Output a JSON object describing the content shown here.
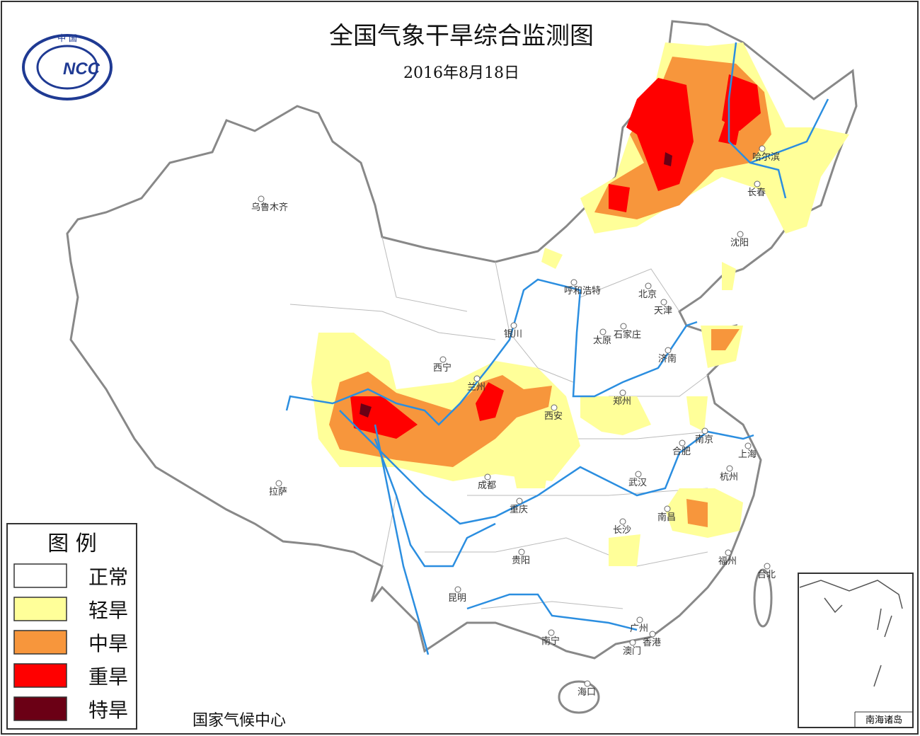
{
  "title": "全国气象干旱综合监测图",
  "date": "2016年8月18日",
  "logo": {
    "top": "中 国",
    "text": "NCC"
  },
  "legend": {
    "title": "图 例",
    "items": [
      {
        "label": "正常",
        "color": "#ffffff"
      },
      {
        "label": "轻旱",
        "color": "#ffff99"
      },
      {
        "label": "中旱",
        "color": "#f7963c"
      },
      {
        "label": "重旱",
        "color": "#ff0000"
      },
      {
        "label": "特旱",
        "color": "#6b0015"
      }
    ]
  },
  "cities": [
    "乌鲁木齐",
    "呼和浩特",
    "北京",
    "天津",
    "银川",
    "太原",
    "石家庄",
    "济南",
    "西宁",
    "兰州",
    "郑州",
    "西安",
    "南京",
    "合肥",
    "上海",
    "成都",
    "武汉",
    "杭州",
    "拉萨",
    "重庆",
    "南昌",
    "长沙",
    "贵阳",
    "福州",
    "台北",
    "昆明",
    "南宁",
    "广州",
    "香港",
    "澳门",
    "海口",
    "哈尔滨",
    "长春",
    "沈阳"
  ],
  "footer": "国家气候中心",
  "inset_label": "南海诸岛"
}
